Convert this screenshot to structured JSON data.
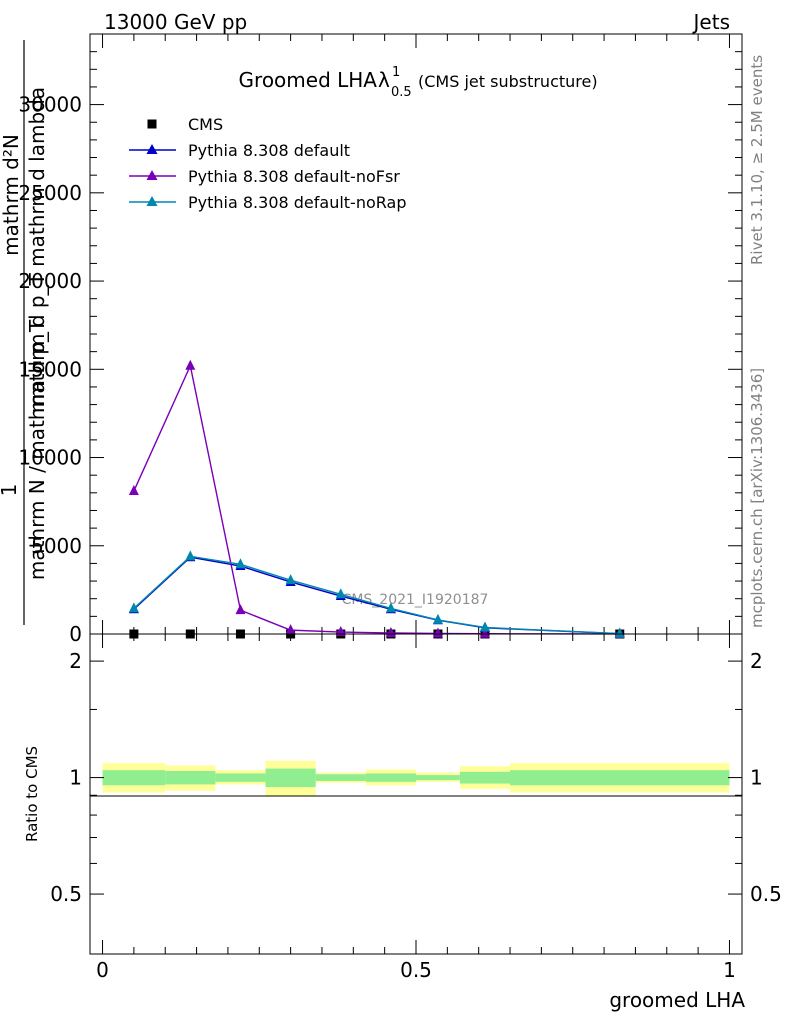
{
  "header": {
    "energy": "13000 GeV pp",
    "category": "Jets"
  },
  "side_text": {
    "rivet": "Rivet 3.1.10, ≥ 2.5M events",
    "mcplots": "mcplots.cern.ch [arXiv:1306.3436]"
  },
  "chart_data": [
    {
      "type": "line",
      "title_main": "Groomed LHA",
      "title_lambda": "λ",
      "title_sup": "1",
      "title_sub": "0.5",
      "title_note": "(CMS jet substructure)",
      "analysis_id": "CMS_2021_I1920187",
      "ylabel_numer": "1",
      "ylabel_line1": "mathrm d²N",
      "ylabel_line2": "mathrm d p_T mathrm d lambda",
      "ylabel_denom": "mathrm N / mathrm d p_T",
      "ylim": [
        0,
        34000
      ],
      "xlim": [
        -0.02,
        1.02
      ],
      "yticks": [
        0,
        5000,
        10000,
        15000,
        20000,
        25000,
        30000
      ],
      "yticklabels": [
        "0",
        "5000",
        "10000",
        "15000",
        "20000",
        "25000",
        "30000"
      ],
      "legend_position": "top-left",
      "legend": [
        "CMS",
        "Pythia 8.308 default",
        "Pythia 8.308 default-noFsr",
        "Pythia 8.308 default-noRap"
      ],
      "bin_edges": [
        0,
        0.1,
        0.18,
        0.26,
        0.34,
        0.42,
        0.5,
        0.57,
        0.65,
        1.0
      ],
      "x": [
        0.05,
        0.14,
        0.22,
        0.3,
        0.38,
        0.46,
        0.535,
        0.61,
        0.825
      ],
      "series": [
        {
          "name": "CMS",
          "marker": "square",
          "color": "#000000",
          "values": [
            0,
            0,
            0,
            0,
            0,
            0,
            0,
            0,
            0
          ]
        },
        {
          "name": "Pythia 8.308 default",
          "marker": "triangle",
          "color": "#0000c8",
          "values": [
            1400,
            4350,
            3850,
            2950,
            2150,
            1400,
            780,
            350,
            20
          ]
        },
        {
          "name": "Pythia 8.308 default-noFsr",
          "marker": "triangle",
          "color": "#7a00b8",
          "values": [
            8100,
            15200,
            1350,
            220,
            110,
            60,
            30,
            15,
            2
          ]
        },
        {
          "name": "Pythia 8.308 default-noRap",
          "marker": "triangle",
          "color": "#0087b0",
          "values": [
            1450,
            4400,
            3950,
            3050,
            2250,
            1450,
            800,
            370,
            22
          ]
        }
      ]
    },
    {
      "type": "area",
      "ylabel": "Ratio to CMS",
      "xlabel": "groomed LHA",
      "ylim": [
        0.35,
        2.35
      ],
      "yticks": [
        0.5,
        1,
        2
      ],
      "yticklabels": [
        "0.5",
        "1",
        "2"
      ],
      "xticks": [
        0,
        0.5,
        1
      ],
      "xticklabels": [
        "0",
        "0.5",
        "1"
      ],
      "stat_band": [
        {
          "x0": 0.0,
          "x1": 0.1,
          "lo": 0.955,
          "hi": 1.045
        },
        {
          "x0": 0.1,
          "x1": 0.18,
          "lo": 0.96,
          "hi": 1.04
        },
        {
          "x0": 0.18,
          "x1": 0.26,
          "lo": 0.975,
          "hi": 1.025
        },
        {
          "x0": 0.26,
          "x1": 0.34,
          "lo": 0.945,
          "hi": 1.055
        },
        {
          "x0": 0.34,
          "x1": 0.42,
          "lo": 0.98,
          "hi": 1.02
        },
        {
          "x0": 0.42,
          "x1": 0.5,
          "lo": 0.975,
          "hi": 1.025
        },
        {
          "x0": 0.5,
          "x1": 0.57,
          "lo": 0.985,
          "hi": 1.015
        },
        {
          "x0": 0.57,
          "x1": 0.65,
          "lo": 0.965,
          "hi": 1.035
        },
        {
          "x0": 0.65,
          "x1": 1.0,
          "lo": 0.955,
          "hi": 1.045
        }
      ],
      "total_band": [
        {
          "x0": 0.0,
          "x1": 0.1,
          "lo": 0.915,
          "hi": 1.09
        },
        {
          "x0": 0.1,
          "x1": 0.18,
          "lo": 0.925,
          "hi": 1.075
        },
        {
          "x0": 0.18,
          "x1": 0.26,
          "lo": 0.96,
          "hi": 1.045
        },
        {
          "x0": 0.26,
          "x1": 0.34,
          "lo": 0.895,
          "hi": 1.105
        },
        {
          "x0": 0.34,
          "x1": 0.42,
          "lo": 0.97,
          "hi": 1.03
        },
        {
          "x0": 0.42,
          "x1": 0.5,
          "lo": 0.955,
          "hi": 1.05
        },
        {
          "x0": 0.5,
          "x1": 0.57,
          "lo": 0.975,
          "hi": 1.03
        },
        {
          "x0": 0.57,
          "x1": 0.65,
          "lo": 0.935,
          "hi": 1.07
        },
        {
          "x0": 0.65,
          "x1": 1.0,
          "lo": 0.915,
          "hi": 1.09
        }
      ],
      "colors": {
        "stat": "#90ee90",
        "total": "#ffff99"
      }
    }
  ]
}
